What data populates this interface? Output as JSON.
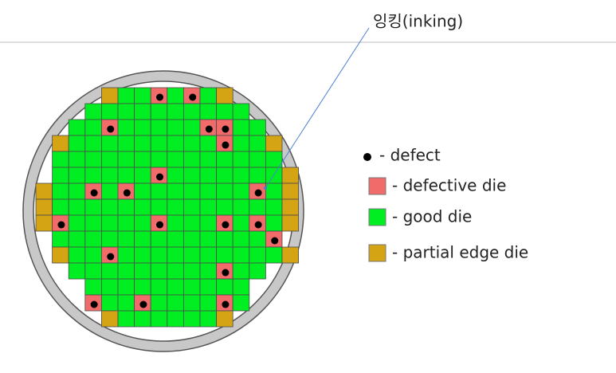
{
  "annotation": "잉킹(inking)",
  "legend": [
    "- defect",
    "- defective die",
    "- good die",
    "- partial edge die"
  ]
}
